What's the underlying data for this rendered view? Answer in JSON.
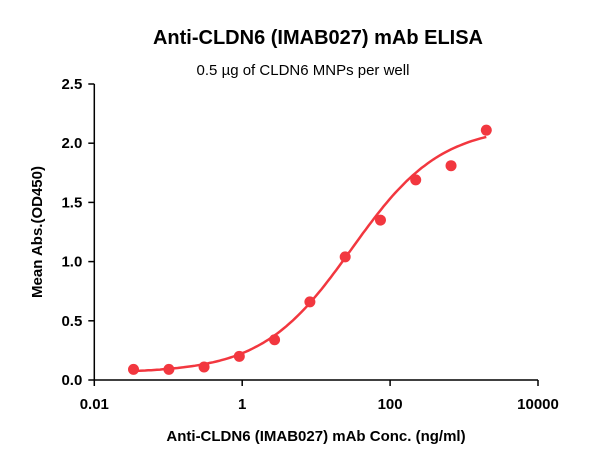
{
  "chart_data": {
    "type": "scatter",
    "title": "Anti-CLDN6 (IMAB027) mAb ELISA",
    "subtitle": "0.5 µg of CLDN6 MNPs per well",
    "xlabel": "Anti-CLDN6 (IMAB027) mAb Conc. (ng/ml)",
    "ylabel": "Mean Abs.(OD450)",
    "xscale": "log",
    "xlim": [
      0.01,
      10000
    ],
    "ylim": [
      0,
      2.5
    ],
    "xticks": [
      0.01,
      1,
      100,
      10000
    ],
    "xtick_labels": [
      "0.01",
      "1",
      "100",
      "10000"
    ],
    "yticks": [
      0,
      0.5,
      1,
      1.5,
      2,
      2.5
    ],
    "ytick_labels": [
      "0.0",
      "0.5",
      "1.0",
      "1.5",
      "2.0",
      "2.5"
    ],
    "grid": false,
    "color": "#f2373f",
    "series": [
      {
        "x": [
          0.0339,
          0.102,
          0.305,
          0.914,
          2.74,
          8.23,
          24.7,
          74.1,
          222,
          667,
          2000
        ],
        "y": [
          0.09,
          0.09,
          0.11,
          0.2,
          0.34,
          0.66,
          1.04,
          1.35,
          1.69,
          1.81,
          2.11
        ],
        "fit": "4PL sigmoid curve"
      }
    ]
  }
}
